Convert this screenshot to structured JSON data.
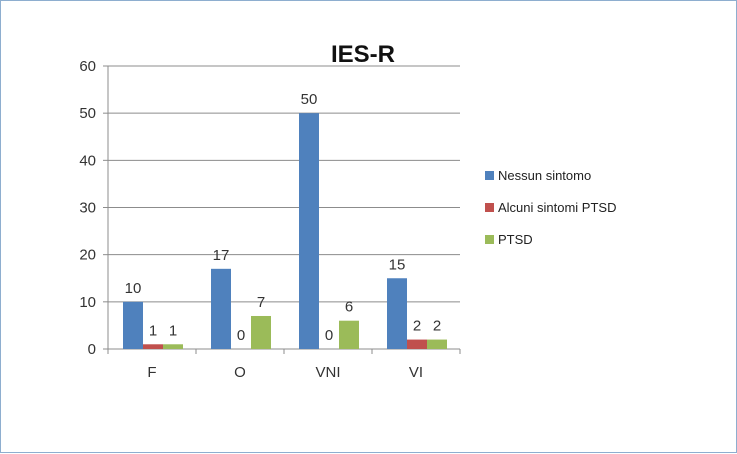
{
  "chart_data": {
    "type": "bar",
    "title": "IES-R",
    "xlabel": "",
    "ylabel": "",
    "categories": [
      "F",
      "O",
      "VNI",
      "VI"
    ],
    "ylim": [
      0,
      60
    ],
    "yticks": [
      0,
      10,
      20,
      30,
      40,
      50,
      60
    ],
    "grid": true,
    "legend_position": "right",
    "series": [
      {
        "name": "Nessun sintomo",
        "color": "#4f81bd",
        "values": [
          10,
          17,
          50,
          15
        ]
      },
      {
        "name": "Alcuni sintomi PTSD",
        "color": "#c0504d",
        "values": [
          1,
          0,
          0,
          2
        ]
      },
      {
        "name": "PTSD",
        "color": "#9bbb59",
        "values": [
          1,
          7,
          6,
          2
        ]
      }
    ]
  }
}
